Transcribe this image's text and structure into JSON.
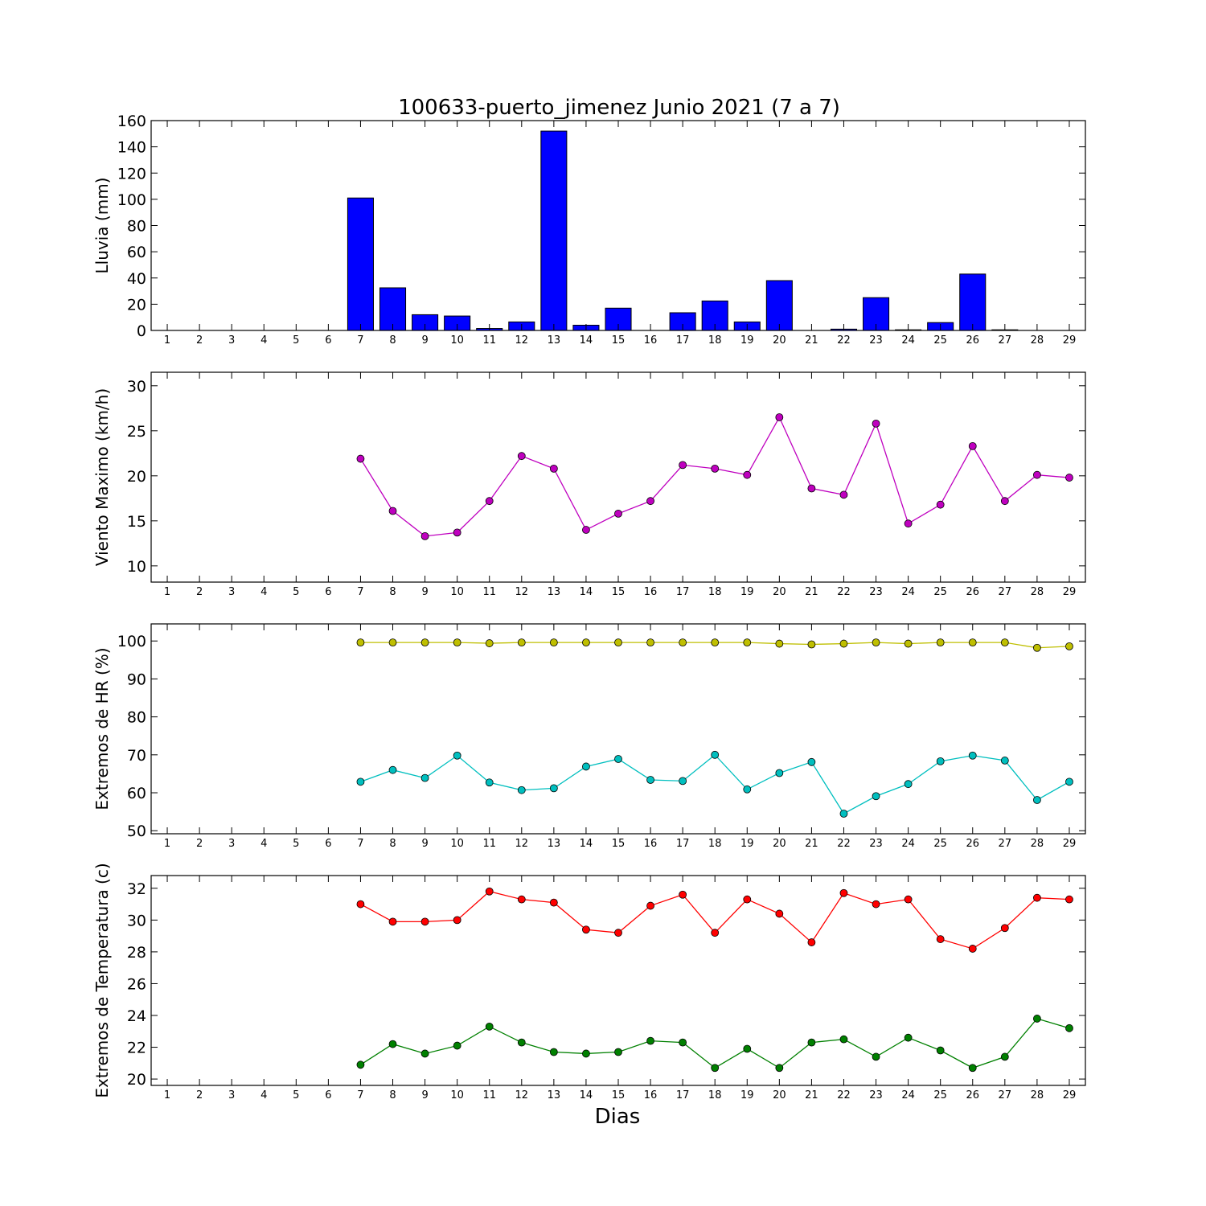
{
  "title": "100633-puerto_jimenez Junio 2021  (7 a 7)",
  "xlabel": "Dias",
  "chart_data": [
    {
      "type": "bar",
      "ylabel": "Lluvia (mm)",
      "ylim": [
        0,
        160
      ],
      "yticks": [
        0,
        20,
        40,
        60,
        80,
        100,
        120,
        140,
        160
      ],
      "categories": [
        "1",
        "2",
        "3",
        "4",
        "5",
        "6",
        "7",
        "8",
        "9",
        "10",
        "11",
        "12",
        "13",
        "14",
        "15",
        "16",
        "17",
        "18",
        "19",
        "20",
        "21",
        "22",
        "23",
        "24",
        "25",
        "26",
        "27",
        "28",
        "29"
      ],
      "x": [
        7,
        8,
        9,
        10,
        11,
        12,
        13,
        14,
        15,
        16,
        17,
        18,
        19,
        20,
        21,
        22,
        23,
        24,
        25,
        26,
        27,
        28,
        29
      ],
      "series": [
        {
          "color": "#0000ff",
          "values": [
            101,
            32.5,
            12,
            11,
            1.5,
            6.5,
            152,
            4,
            17,
            0,
            13.5,
            22.5,
            6.5,
            38,
            0,
            1,
            25,
            0.5,
            6,
            43,
            0.5,
            0,
            0
          ]
        }
      ]
    },
    {
      "type": "line",
      "ylabel": "Viento Maximo (km/h)",
      "ylim": [
        8.2,
        31.5
      ],
      "yticks": [
        10,
        15,
        20,
        25,
        30
      ],
      "categories": [
        "1",
        "2",
        "3",
        "4",
        "5",
        "6",
        "7",
        "8",
        "9",
        "10",
        "11",
        "12",
        "13",
        "14",
        "15",
        "16",
        "17",
        "18",
        "19",
        "20",
        "21",
        "22",
        "23",
        "24",
        "25",
        "26",
        "27",
        "28",
        "29"
      ],
      "x": [
        7,
        8,
        9,
        10,
        11,
        12,
        13,
        14,
        15,
        16,
        17,
        18,
        19,
        20,
        21,
        22,
        23,
        24,
        25,
        26,
        27,
        28,
        29
      ],
      "series": [
        {
          "color": "#bf00bf",
          "values": [
            21.9,
            16.1,
            13.3,
            13.7,
            17.2,
            22.2,
            20.8,
            14.0,
            15.8,
            17.2,
            21.2,
            20.8,
            20.1,
            26.5,
            18.6,
            17.9,
            25.8,
            14.7,
            16.8,
            23.3,
            17.2,
            20.1,
            19.8
          ]
        }
      ]
    },
    {
      "type": "line",
      "ylabel": "Extremos de HR (%)",
      "ylim": [
        49.2,
        104.5
      ],
      "yticks": [
        50,
        60,
        70,
        80,
        90,
        100
      ],
      "categories": [
        "1",
        "2",
        "3",
        "4",
        "5",
        "6",
        "7",
        "8",
        "9",
        "10",
        "11",
        "12",
        "13",
        "14",
        "15",
        "16",
        "17",
        "18",
        "19",
        "20",
        "21",
        "22",
        "23",
        "24",
        "25",
        "26",
        "27",
        "28",
        "29"
      ],
      "x": [
        7,
        8,
        9,
        10,
        11,
        12,
        13,
        14,
        15,
        16,
        17,
        18,
        19,
        20,
        21,
        22,
        23,
        24,
        25,
        26,
        27,
        28,
        29
      ],
      "series": [
        {
          "color": "#bfbf00",
          "values": [
            99.6,
            99.6,
            99.6,
            99.6,
            99.4,
            99.6,
            99.6,
            99.6,
            99.6,
            99.6,
            99.6,
            99.6,
            99.6,
            99.3,
            99.1,
            99.3,
            99.6,
            99.3,
            99.6,
            99.6,
            99.6,
            98.2,
            98.6
          ]
        },
        {
          "color": "#00bfbf",
          "values": [
            62.9,
            66.0,
            63.9,
            69.8,
            62.7,
            60.7,
            61.2,
            66.9,
            68.9,
            63.4,
            63.1,
            70.0,
            60.9,
            65.2,
            68.1,
            54.5,
            59.1,
            62.3,
            68.3,
            69.8,
            68.5,
            58.1,
            62.9
          ]
        }
      ]
    },
    {
      "type": "line",
      "ylabel": "Extremos de Temperatura (c)",
      "ylim": [
        19.6,
        32.8
      ],
      "yticks": [
        20,
        22,
        24,
        26,
        28,
        30,
        32
      ],
      "categories": [
        "1",
        "2",
        "3",
        "4",
        "5",
        "6",
        "7",
        "8",
        "9",
        "10",
        "11",
        "12",
        "13",
        "14",
        "15",
        "16",
        "17",
        "18",
        "19",
        "20",
        "21",
        "22",
        "23",
        "24",
        "25",
        "26",
        "27",
        "28",
        "29"
      ],
      "x": [
        7,
        8,
        9,
        10,
        11,
        12,
        13,
        14,
        15,
        16,
        17,
        18,
        19,
        20,
        21,
        22,
        23,
        24,
        25,
        26,
        27,
        28,
        29
      ],
      "series": [
        {
          "color": "#ff0000",
          "values": [
            31.0,
            29.9,
            29.9,
            30.0,
            31.8,
            31.3,
            31.1,
            29.4,
            29.2,
            30.9,
            31.6,
            29.2,
            31.3,
            30.4,
            28.6,
            31.7,
            31.0,
            31.3,
            28.8,
            28.2,
            29.5,
            31.4,
            31.3
          ]
        },
        {
          "color": "#008000",
          "values": [
            20.9,
            22.2,
            21.6,
            22.1,
            23.3,
            22.3,
            21.7,
            21.6,
            21.7,
            22.4,
            22.3,
            20.7,
            21.9,
            20.7,
            22.3,
            22.5,
            21.4,
            22.6,
            21.8,
            20.7,
            21.4,
            23.8,
            23.2
          ]
        }
      ]
    }
  ]
}
